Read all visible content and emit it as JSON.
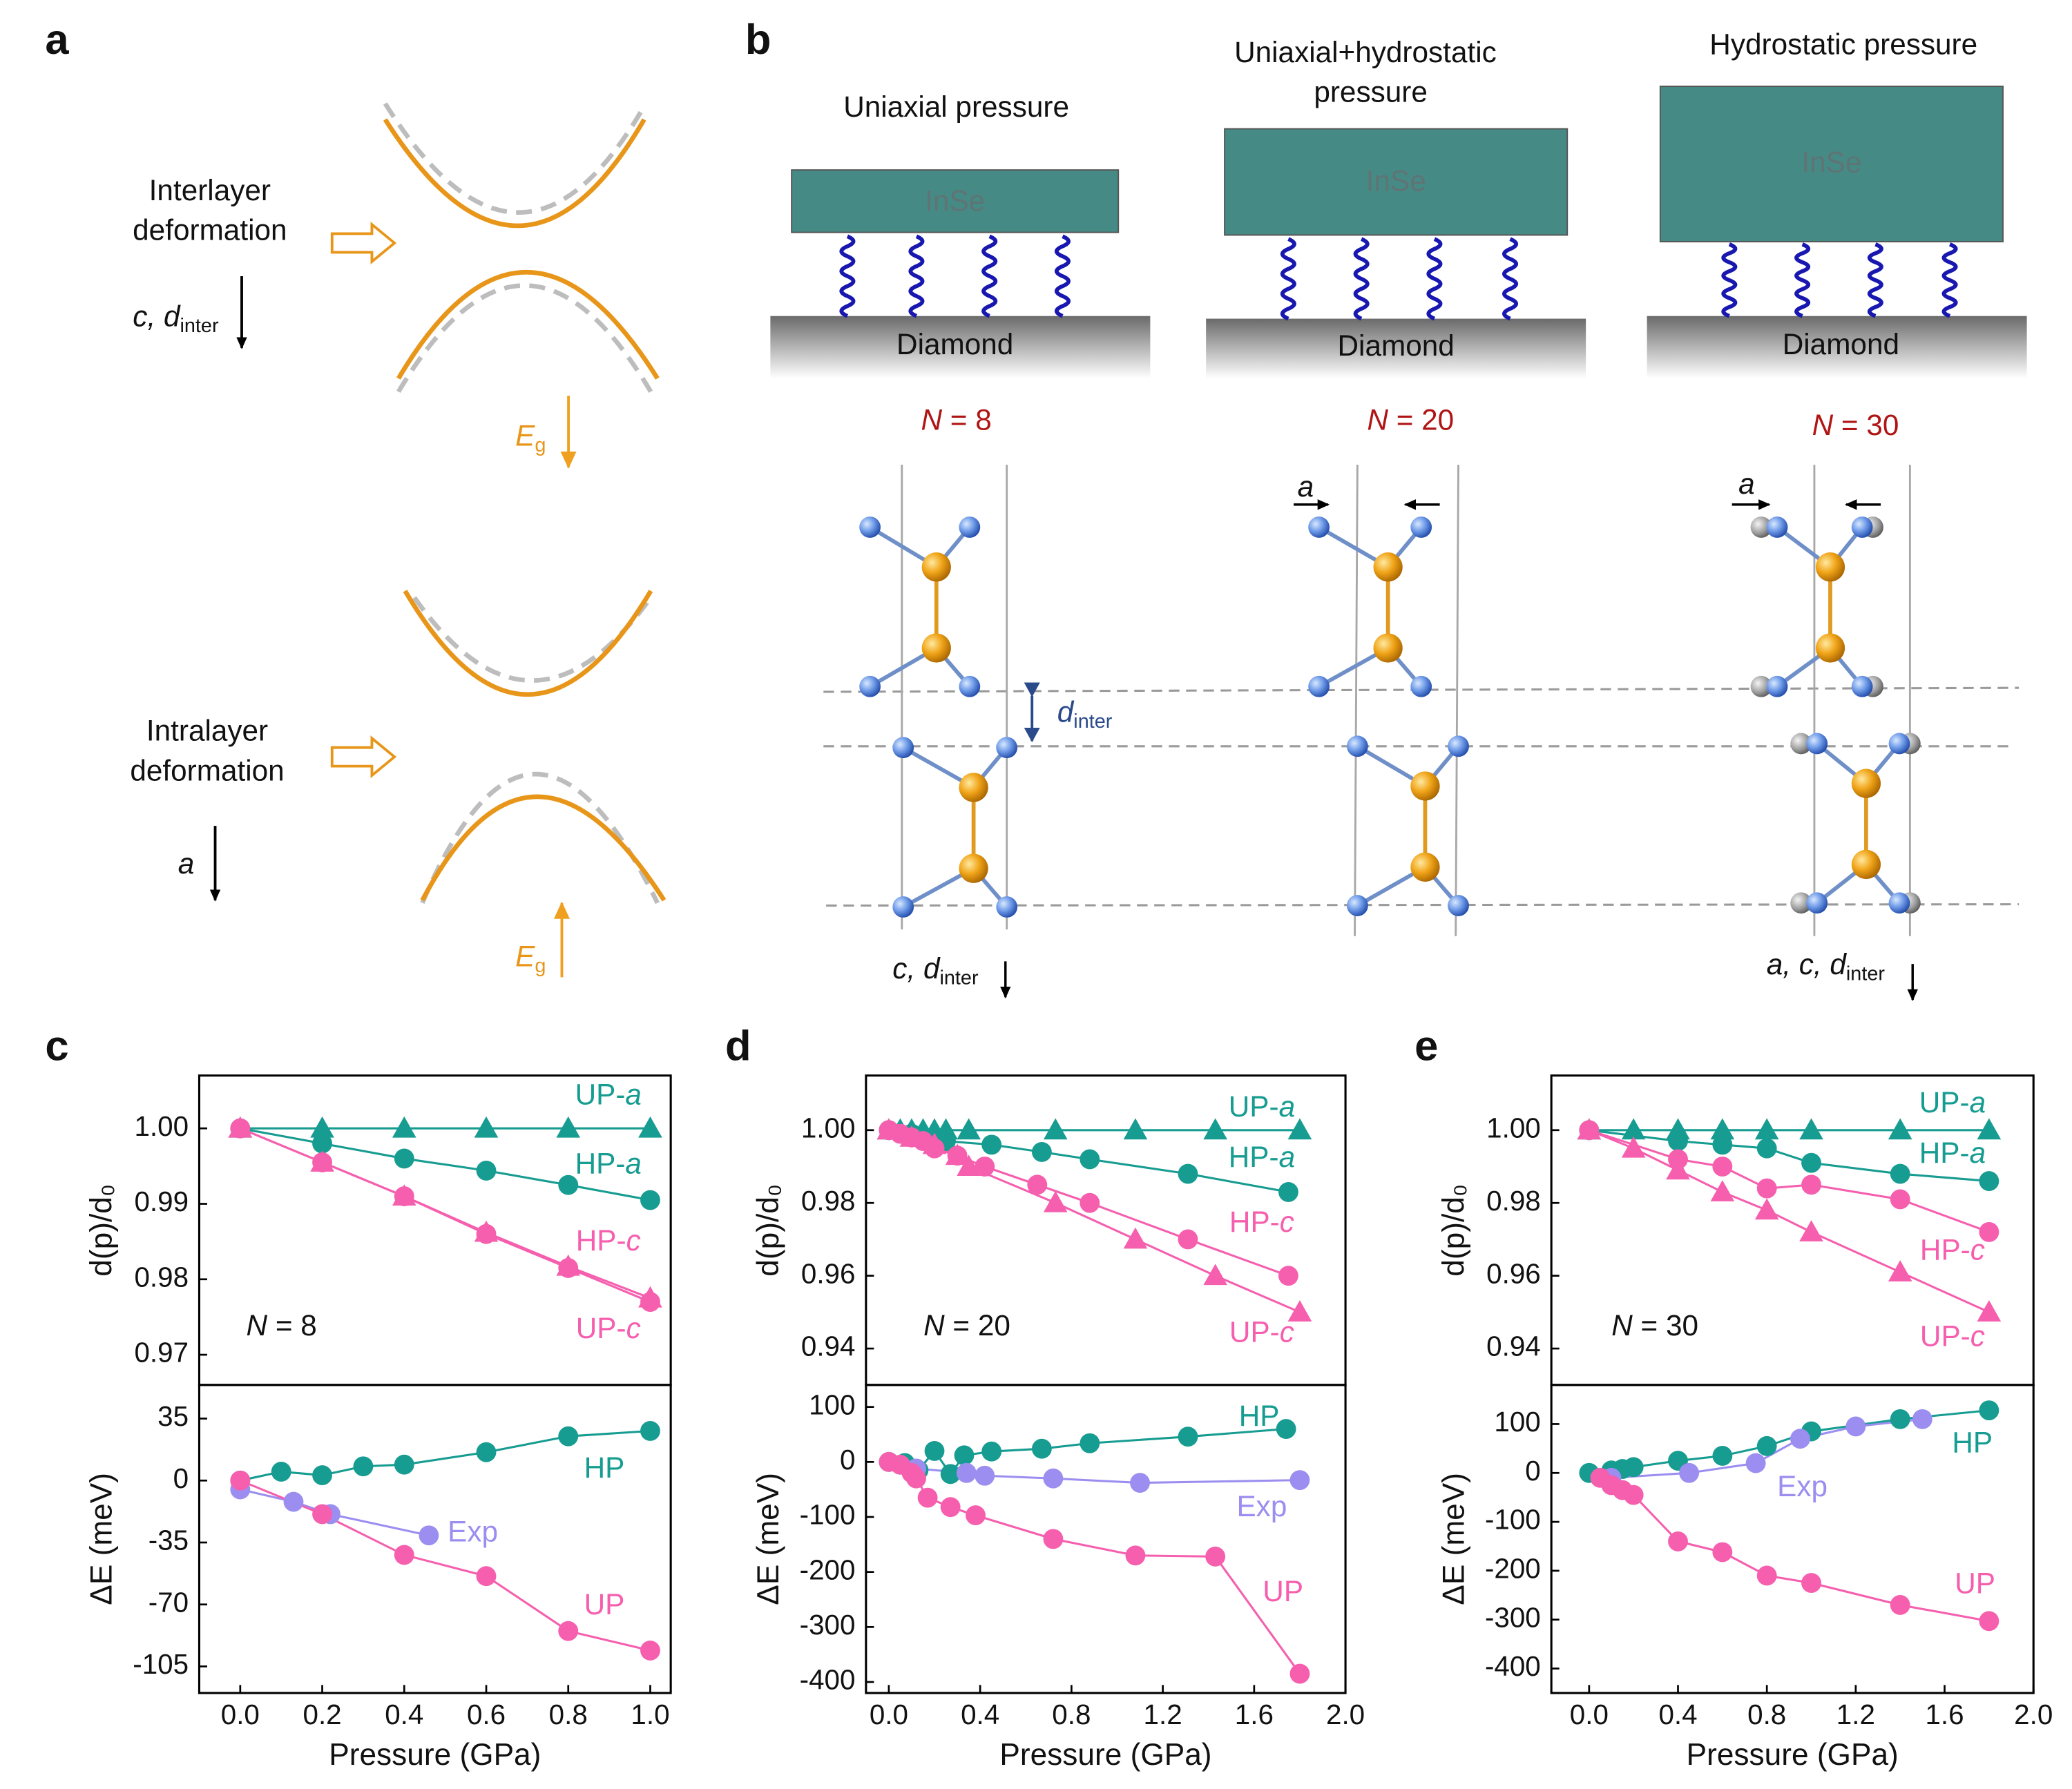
{
  "panel_a": {
    "label": "a",
    "interlayer": {
      "lines": [
        "Interlayer",
        "deformation"
      ],
      "param": {
        "main": "c, d",
        "sub": "inter"
      },
      "gap": {
        "main": "E",
        "sub": "g"
      }
    },
    "intralayer": {
      "lines": [
        "Intralayer",
        "deformation"
      ],
      "param": {
        "main": "a"
      },
      "gap": {
        "main": "E",
        "sub": "g"
      }
    }
  },
  "panel_b": {
    "label": "b",
    "columns": [
      {
        "title": [
          "Uniaxial pressure"
        ],
        "sample": "InSe",
        "substrate": "Diamond",
        "layers": "N = 8"
      },
      {
        "title": [
          "Uniaxial+hydrostatic",
          "pressure"
        ],
        "sample": "InSe",
        "substrate": "Diamond",
        "layers": "N = 20"
      },
      {
        "title": [
          "Hydrostatic pressure"
        ],
        "sample": "InSe",
        "substrate": "Diamond",
        "layers": "N = 30"
      }
    ],
    "spacing": {
      "main": "d",
      "sub": "inter"
    },
    "lattice_label": "a",
    "changes": [
      {
        "main": "c, d",
        "sub": "inter"
      },
      {
        "main": "a, c, d",
        "sub": "inter"
      }
    ]
  },
  "chart_data": [
    {
      "type": "line",
      "panel": "c",
      "ylabel": "d(p)/d₀",
      "annotation": "N = 8",
      "xlim": [
        -0.1,
        1.05
      ],
      "ylim": [
        0.966,
        1.007
      ],
      "yticks": [
        {
          "value": 1,
          "label": "1.00"
        },
        0.99,
        0.98,
        0.97
      ],
      "series": [
        {
          "name": "UP-a",
          "color": "#179c91",
          "marker": "triangle",
          "x": [
            0,
            0.2,
            0.4,
            0.6,
            0.8,
            1
          ],
          "values": [
            1,
            1,
            1,
            1,
            1,
            1
          ]
        },
        {
          "name": "HP-a",
          "color": "#179c91",
          "marker": "circle",
          "x": [
            0,
            0.2,
            0.4,
            0.6,
            0.8,
            1
          ],
          "values": [
            1,
            0.998,
            0.996,
            0.9944,
            0.9925,
            0.9905
          ]
        },
        {
          "name": "HP-c",
          "color": "#f55fae",
          "marker": "circle",
          "x": [
            0,
            0.2,
            0.4,
            0.6,
            0.8,
            1
          ],
          "values": [
            1,
            0.9955,
            0.991,
            0.986,
            0.9815,
            0.977
          ]
        },
        {
          "name": "UP-c",
          "color": "#f55fae",
          "marker": "triangle",
          "x": [
            0,
            0.2,
            0.4,
            0.6,
            0.8,
            1
          ],
          "values": [
            1,
            0.9955,
            0.991,
            0.9862,
            0.9817,
            0.9775
          ]
        }
      ]
    },
    {
      "type": "line",
      "ylabel": "ΔE (meV)",
      "xlabel": "Pressure (GPa)",
      "xlim": [
        -0.1,
        1.05
      ],
      "ylim": [
        -120,
        54
      ],
      "xticks": [
        {
          "value": 0,
          "label": "0.0"
        },
        0.2,
        0.4,
        0.6,
        0.8,
        {
          "value": 1,
          "label": "1.0"
        }
      ],
      "yticks": [
        35,
        0,
        -35,
        -70,
        -105
      ],
      "series": [
        {
          "name": "HP",
          "color": "#179c91",
          "marker": "circle",
          "x": [
            0,
            0.1,
            0.2,
            0.3,
            0.4,
            0.6,
            0.8,
            1
          ],
          "values": [
            0,
            5,
            3,
            8,
            9,
            16,
            25,
            28
          ]
        },
        {
          "name": "Exp",
          "color": "#9b8ef0",
          "marker": "circle",
          "x": [
            0,
            0.13,
            0.22,
            0.46
          ],
          "values": [
            -5,
            -12,
            -19,
            -31
          ]
        },
        {
          "name": "UP",
          "color": "#f55fae",
          "marker": "circle",
          "x": [
            0,
            0.2,
            0.4,
            0.6,
            0.8,
            1
          ],
          "values": [
            0,
            -19,
            -42,
            -54,
            -85,
            -96
          ]
        }
      ]
    },
    {
      "type": "line",
      "panel": "d",
      "ylabel": "d(p)/d₀",
      "annotation": "N = 20",
      "xlim": [
        -0.1,
        2
      ],
      "ylim": [
        0.93,
        1.015
      ],
      "yticks": [
        {
          "value": 1,
          "label": "1.00"
        },
        0.98,
        0.96,
        0.94
      ],
      "series": [
        {
          "name": "UP-a",
          "color": "#179c91",
          "marker": "triangle",
          "x": [
            0,
            0.05,
            0.1,
            0.15,
            0.2,
            0.25,
            0.35,
            0.73,
            1.08,
            1.43,
            1.8
          ],
          "values": [
            1,
            1,
            1,
            1,
            1,
            1,
            1,
            1,
            1,
            1,
            1
          ]
        },
        {
          "name": "HP-a",
          "color": "#179c91",
          "marker": "circle",
          "x": [
            0,
            0.1,
            0.15,
            0.2,
            0.25,
            0.45,
            0.67,
            0.88,
            1.31,
            1.75
          ],
          "values": [
            1,
            0.999,
            0.998,
            0.998,
            0.997,
            0.996,
            0.994,
            0.992,
            0.988,
            0.983
          ]
        },
        {
          "name": "HP-c",
          "color": "#f55fae",
          "marker": "circle",
          "x": [
            0,
            0.05,
            0.1,
            0.15,
            0.2,
            0.3,
            0.42,
            0.65,
            0.88,
            1.31,
            1.75
          ],
          "values": [
            1,
            0.999,
            0.998,
            0.997,
            0.995,
            0.993,
            0.99,
            0.985,
            0.98,
            0.97,
            0.96
          ]
        },
        {
          "name": "UP-c",
          "color": "#f55fae",
          "marker": "triangle",
          "x": [
            0,
            0.1,
            0.2,
            0.3,
            0.35,
            0.73,
            1.08,
            1.43,
            1.8
          ],
          "values": [
            1,
            0.998,
            0.996,
            0.993,
            0.99,
            0.98,
            0.97,
            0.96,
            0.95
          ]
        }
      ]
    },
    {
      "type": "line",
      "ylabel": "ΔE (meV)",
      "xlabel": "Pressure (GPa)",
      "xlim": [
        -0.1,
        2
      ],
      "ylim": [
        -420,
        140
      ],
      "xticks": [
        {
          "value": 0,
          "label": "0.0"
        },
        0.4,
        0.8,
        1.2,
        1.6,
        {
          "value": 2,
          "label": "2.0"
        }
      ],
      "yticks": [
        100,
        0,
        -100,
        -200,
        -300,
        -400
      ],
      "series": [
        {
          "name": "HP",
          "color": "#179c91",
          "marker": "circle",
          "x": [
            0,
            0.07,
            0.13,
            0.2,
            0.27,
            0.33,
            0.45,
            0.67,
            0.88,
            1.31,
            1.74
          ],
          "values": [
            0,
            -2,
            -15,
            20,
            -22,
            12,
            19,
            24,
            34,
            46,
            60
          ]
        },
        {
          "name": "Exp",
          "color": "#9b8ef0",
          "marker": "circle",
          "x": [
            0.12,
            0.34,
            0.42,
            0.72,
            1.1,
            1.8
          ],
          "values": [
            -12,
            -20,
            -25,
            -30,
            -38,
            -33
          ]
        },
        {
          "name": "UP",
          "color": "#f55fae",
          "marker": "circle",
          "x": [
            0,
            0.05,
            0.1,
            0.12,
            0.17,
            0.27,
            0.38,
            0.72,
            1.08,
            1.43,
            1.8
          ],
          "values": [
            0,
            -5,
            -20,
            -30,
            -65,
            -82,
            -97,
            -140,
            -170,
            -172,
            -385
          ]
        }
      ]
    },
    {
      "type": "line",
      "panel": "e",
      "ylabel": "d(p)/d₀",
      "annotation": "N = 30",
      "xlim": [
        -0.17,
        2
      ],
      "ylim": [
        0.93,
        1.015
      ],
      "yticks": [
        {
          "value": 1,
          "label": "1.00"
        },
        0.98,
        0.96,
        0.94
      ],
      "series": [
        {
          "name": "UP-a",
          "color": "#179c91",
          "marker": "triangle",
          "x": [
            0,
            0.2,
            0.4,
            0.6,
            0.8,
            1,
            1.4,
            1.8
          ],
          "values": [
            1,
            1,
            1,
            1,
            1,
            1,
            1,
            1
          ]
        },
        {
          "name": "HP-a",
          "color": "#179c91",
          "marker": "circle",
          "x": [
            0,
            0.4,
            0.6,
            0.8,
            1,
            1.4,
            1.8
          ],
          "values": [
            1,
            0.997,
            0.996,
            0.995,
            0.991,
            0.988,
            0.986
          ]
        },
        {
          "name": "HP-c",
          "color": "#f55fae",
          "marker": "circle",
          "x": [
            0,
            0.4,
            0.6,
            0.8,
            1,
            1.4,
            1.8
          ],
          "values": [
            1,
            0.992,
            0.99,
            0.984,
            0.985,
            0.981,
            0.972
          ]
        },
        {
          "name": "UP-c",
          "color": "#f55fae",
          "marker": "triangle",
          "x": [
            0,
            0.2,
            0.4,
            0.6,
            0.8,
            1,
            1.4,
            1.8
          ],
          "values": [
            1,
            0.995,
            0.989,
            0.983,
            0.978,
            0.972,
            0.961,
            0.95
          ]
        }
      ]
    },
    {
      "type": "line",
      "ylabel": "ΔE (meV)",
      "xlabel": "Pressure (GPa)",
      "xlim": [
        -0.17,
        2
      ],
      "ylim": [
        -450,
        180
      ],
      "xticks": [
        {
          "value": 0,
          "label": "0.0"
        },
        0.4,
        0.8,
        1.2,
        1.6,
        {
          "value": 2,
          "label": "2.0"
        }
      ],
      "yticks": [
        100,
        0,
        -100,
        -200,
        -300,
        -400
      ],
      "series": [
        {
          "name": "HP",
          "color": "#179c91",
          "marker": "circle",
          "x": [
            0,
            0.1,
            0.15,
            0.2,
            0.4,
            0.6,
            0.8,
            1,
            1.4,
            1.8
          ],
          "values": [
            0,
            5,
            8,
            12,
            25,
            35,
            55,
            85,
            110,
            128
          ]
        },
        {
          "name": "Exp",
          "color": "#9b8ef0",
          "marker": "circle",
          "x": [
            0.1,
            0.45,
            0.75,
            0.95,
            1.2,
            1.5
          ],
          "values": [
            -10,
            0,
            20,
            70,
            95,
            110
          ]
        },
        {
          "name": "UP",
          "color": "#f55fae",
          "marker": "circle",
          "x": [
            0.05,
            0.1,
            0.15,
            0.2,
            0.4,
            0.6,
            0.8,
            1,
            1.4,
            1.8
          ],
          "values": [
            -10,
            -25,
            -35,
            -45,
            -140,
            -162,
            -210,
            -225,
            -270,
            -303
          ]
        }
      ]
    }
  ]
}
